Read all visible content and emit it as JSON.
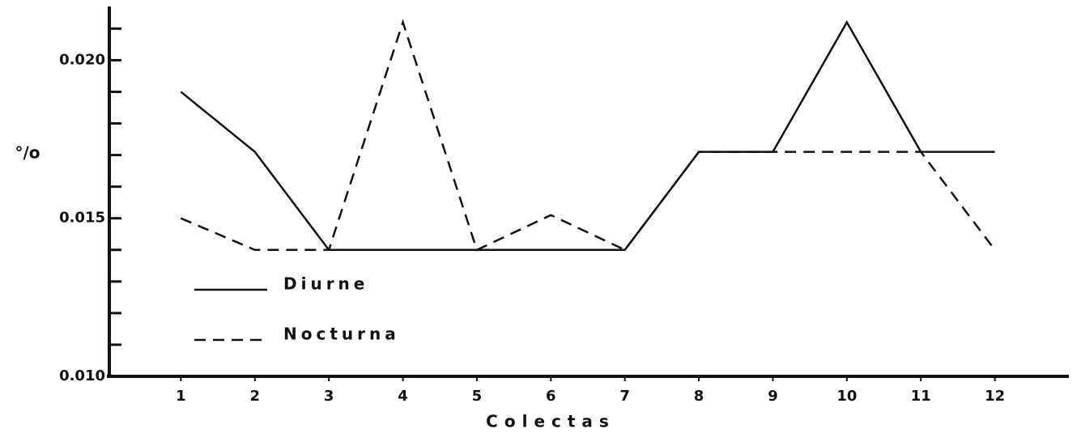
{
  "chart_data": {
    "type": "line",
    "ylabel": "°/o",
    "xlabel": "Colectas",
    "x": [
      1,
      2,
      3,
      4,
      5,
      6,
      7,
      8,
      9,
      10,
      11,
      12
    ],
    "series": [
      {
        "name": "Diurne",
        "color": "#111111",
        "dash": false,
        "values": [
          0.019,
          0.0171,
          0.014,
          0.014,
          0.014,
          0.014,
          0.014,
          0.0171,
          0.0171,
          0.0212,
          0.0171,
          0.0171
        ]
      },
      {
        "name": "Nocturna",
        "color": "#111111",
        "dash": true,
        "values": [
          0.015,
          0.014,
          0.014,
          0.0212,
          0.014,
          0.0151,
          0.014,
          0.0171,
          0.0171,
          0.0171,
          0.0171,
          0.014
        ]
      }
    ],
    "xlim": [
      0,
      13
    ],
    "xticks": [
      1,
      2,
      3,
      4,
      5,
      6,
      7,
      8,
      9,
      10,
      11,
      12
    ],
    "ylim": [
      0.01,
      0.0217
    ],
    "yticks": [
      {
        "value": 0.01,
        "label": "0.010"
      },
      0.015,
      {
        "value": 0.02,
        "label": "0.020"
      }
    ],
    "yticks_minor": [
      0.011,
      0.012,
      0.013,
      0.014,
      0.016,
      0.017,
      0.018,
      0.019,
      0.021
    ],
    "legend": "lower left"
  }
}
